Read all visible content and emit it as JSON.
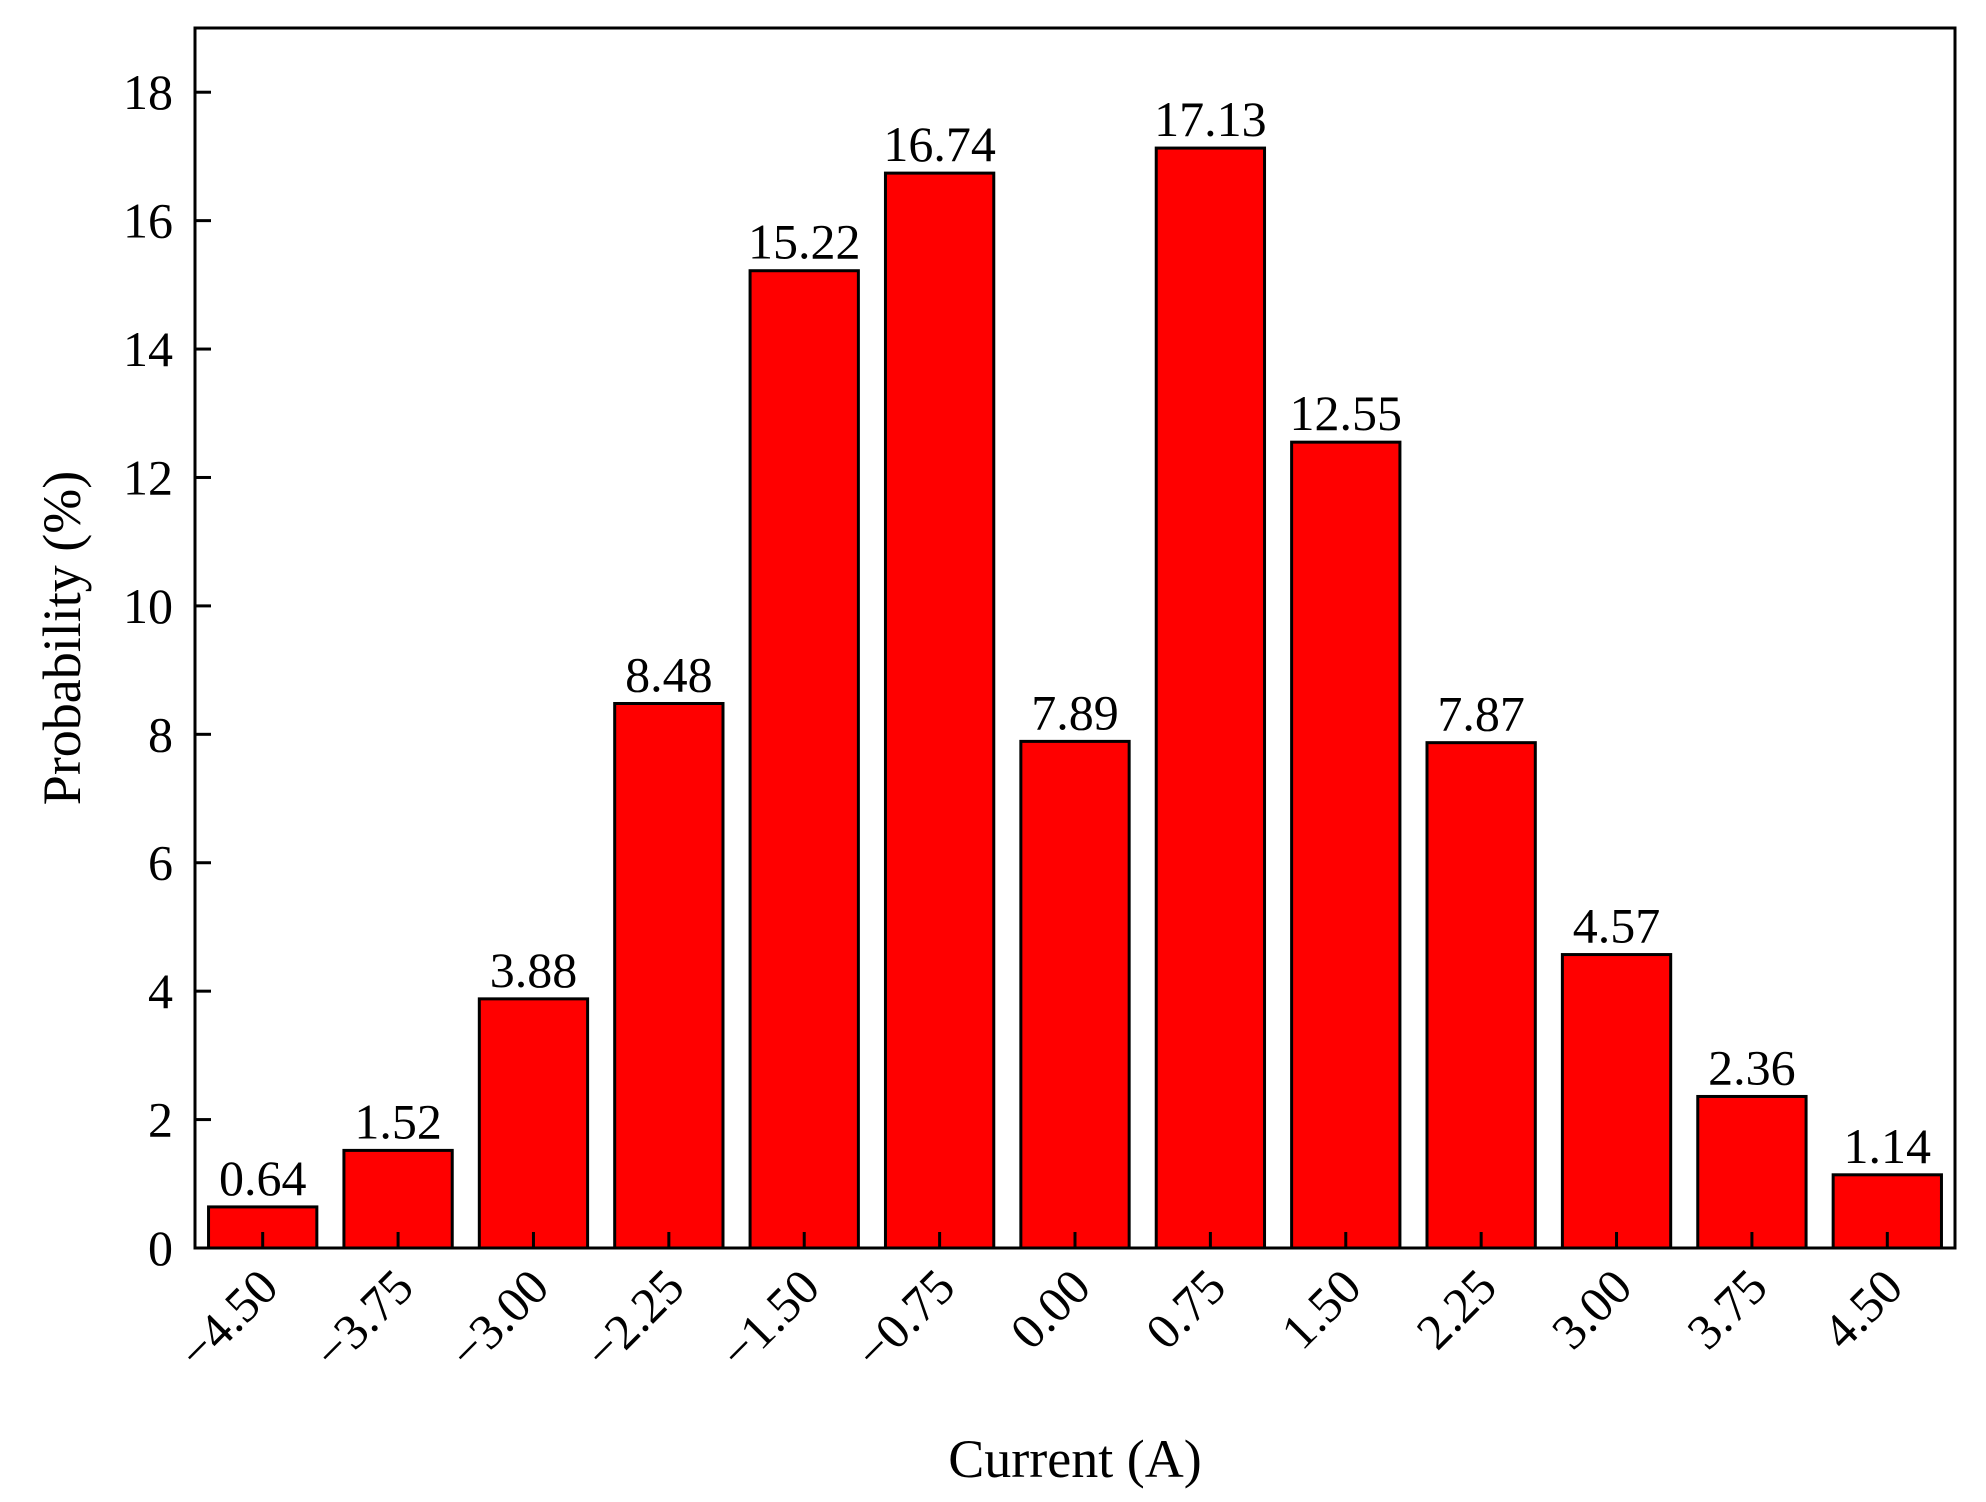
{
  "chart_data": {
    "type": "bar",
    "categories": [
      "−4.50",
      "−3.75",
      "−3.00",
      "−2.25",
      "−1.50",
      "−0.75",
      "0.00",
      "0.75",
      "1.50",
      "2.25",
      "3.00",
      "3.75",
      "4.50"
    ],
    "values": [
      0.64,
      1.52,
      3.88,
      8.48,
      15.22,
      16.74,
      7.89,
      17.13,
      12.55,
      7.87,
      4.57,
      2.36,
      1.14
    ],
    "value_labels": [
      "0.64",
      "1.52",
      "3.88",
      "8.48",
      "15.22",
      "16.74",
      "7.89",
      "17.13",
      "12.55",
      "7.87",
      "4.57",
      "2.36",
      "1.14"
    ],
    "title": "",
    "xlabel": "Current (A)",
    "ylabel": "Probability (%)",
    "ylim": [
      0,
      19
    ],
    "yticks": [
      0,
      2,
      4,
      6,
      8,
      10,
      12,
      14,
      16,
      18
    ],
    "ytick_labels": [
      "0",
      "2",
      "4",
      "6",
      "8",
      "10",
      "12",
      "14",
      "16",
      "18"
    ],
    "bar_color": "#ff0000",
    "bar_edge_color": "#000000",
    "grid": false,
    "legend": "none"
  }
}
